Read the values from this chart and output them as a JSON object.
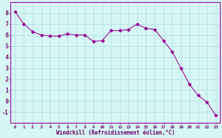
{
  "x": [
    0,
    1,
    2,
    3,
    4,
    5,
    6,
    7,
    8,
    9,
    10,
    11,
    12,
    13,
    14,
    15,
    16,
    17,
    18,
    19,
    20,
    21,
    22,
    23
  ],
  "y": [
    8.1,
    7.0,
    6.3,
    6.0,
    5.9,
    5.9,
    6.1,
    6.0,
    6.0,
    5.4,
    5.5,
    6.4,
    6.4,
    6.5,
    7.0,
    6.6,
    6.5,
    5.5,
    4.5,
    3.0,
    1.5,
    0.5,
    -0.1,
    -1.3
  ],
  "line_color": "#990099",
  "marker": "D",
  "markersize": 2.0,
  "linewidth": 0.8,
  "background_color": "#d6f5f5",
  "grid_color": "#aadddd",
  "xlabel": "Windchill (Refroidissement éolien,°C)",
  "xlabel_color": "#660066",
  "tick_color": "#660066",
  "xlim": [
    -0.5,
    23.5
  ],
  "ylim": [
    -2,
    9
  ],
  "yticks": [
    -1,
    0,
    1,
    2,
    3,
    4,
    5,
    6,
    7,
    8
  ],
  "xticks": [
    0,
    1,
    2,
    3,
    4,
    5,
    6,
    7,
    8,
    9,
    10,
    11,
    12,
    13,
    14,
    15,
    16,
    17,
    18,
    19,
    20,
    21,
    22,
    23
  ]
}
